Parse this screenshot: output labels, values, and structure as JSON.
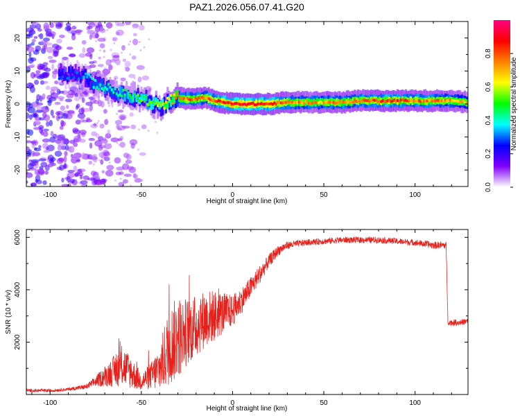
{
  "title": "PAZ1.2026.056.07.41.G20",
  "chart_data": [
    {
      "type": "heatmap",
      "xlabel": "Height of straight line (km)",
      "ylabel": "Frequency (Hz)",
      "xlim": [
        -113,
        129
      ],
      "ylim": [
        -25,
        25
      ],
      "xticks": [
        -100,
        -50,
        0,
        50,
        100
      ],
      "yticks": [
        -20,
        -10,
        0,
        10,
        20
      ],
      "xtick_labels": [
        "-100",
        "-50",
        "0",
        "50",
        "100"
      ],
      "ytick_labels": [
        "-20",
        "-10",
        "0",
        "10",
        "20"
      ],
      "colorbar": {
        "label": "Normalized spectral amplitude",
        "range": [
          0,
          1
        ],
        "ticks": [
          0.0,
          0.2,
          0.4,
          0.6,
          0.8
        ],
        "tick_labels": [
          "0.0",
          "0.2",
          "0.4",
          "0.6",
          "0.8"
        ],
        "colors": [
          "#ffffff",
          "#8000ff",
          "#0000ff",
          "#00ffff",
          "#00ff00",
          "#ffff00",
          "#ff8000",
          "#ff0000",
          "#ff0080"
        ]
      },
      "ridge": {
        "x": [
          -85,
          -80,
          -75,
          -70,
          -65,
          -60,
          -55,
          -50,
          -45,
          -40,
          -35,
          -30,
          -25,
          -20,
          -15,
          -10,
          -5,
          0,
          10,
          20,
          30,
          40,
          50,
          60,
          70,
          80,
          90,
          100,
          110,
          120,
          129
        ],
        "frequency": [
          9,
          8,
          6,
          5,
          4,
          3,
          2.5,
          1.5,
          0.5,
          -1,
          1,
          2,
          1.5,
          1.5,
          2,
          1,
          0.5,
          0,
          0,
          0,
          0.5,
          0.5,
          0.5,
          0.5,
          1,
          1,
          1,
          1,
          1,
          1,
          0.5
        ],
        "amplitude": [
          0.3,
          0.35,
          0.45,
          0.45,
          0.45,
          0.5,
          0.5,
          0.55,
          0.55,
          0.6,
          0.7,
          0.75,
          0.8,
          0.8,
          0.8,
          0.85,
          0.9,
          0.95,
          0.95,
          0.9,
          0.8,
          0.75,
          0.75,
          0.8,
          0.8,
          0.85,
          0.85,
          0.8,
          0.8,
          0.75,
          0.7
        ]
      }
    },
    {
      "type": "line",
      "xlabel": "Height of straight line (km)",
      "ylabel": "SNR (10 * v/v)",
      "xlim": [
        -113,
        129
      ],
      "ylim": [
        0,
        6300
      ],
      "xticks": [
        -100,
        -50,
        0,
        50,
        100
      ],
      "yticks": [
        2000,
        4000,
        6000
      ],
      "xtick_labels": [
        "-100",
        "-50",
        "0",
        "50",
        "100"
      ],
      "ytick_labels": [
        "2000",
        "4000",
        "6000"
      ],
      "color": "#e8211c",
      "series": [
        {
          "name": "SNR",
          "x": [
            -113,
            -100,
            -90,
            -80,
            -75,
            -70,
            -65,
            -60,
            -55,
            -50,
            -45,
            -40,
            -35,
            -30,
            -25,
            -20,
            -15,
            -10,
            -5,
            0,
            5,
            10,
            15,
            20,
            25,
            30,
            40,
            50,
            60,
            70,
            80,
            90,
            100,
            110,
            117,
            118,
            119,
            125,
            129
          ],
          "base": [
            150,
            150,
            200,
            300,
            500,
            700,
            900,
            1100,
            800,
            500,
            700,
            1000,
            1800,
            2200,
            2400,
            2600,
            2900,
            3000,
            3100,
            3200,
            3600,
            4100,
            4600,
            5100,
            5500,
            5700,
            5800,
            5850,
            5900,
            5900,
            5900,
            5850,
            5800,
            5700,
            5700,
            2800,
            2750,
            2750,
            2800
          ],
          "noise": [
            60,
            60,
            60,
            100,
            200,
            400,
            600,
            800,
            600,
            350,
            500,
            900,
            1500,
            1600,
            1300,
            1200,
            1100,
            1000,
            800,
            600,
            500,
            400,
            350,
            250,
            200,
            150,
            120,
            120,
            120,
            120,
            120,
            120,
            120,
            140,
            140,
            120,
            120,
            120,
            120
          ]
        }
      ]
    }
  ]
}
